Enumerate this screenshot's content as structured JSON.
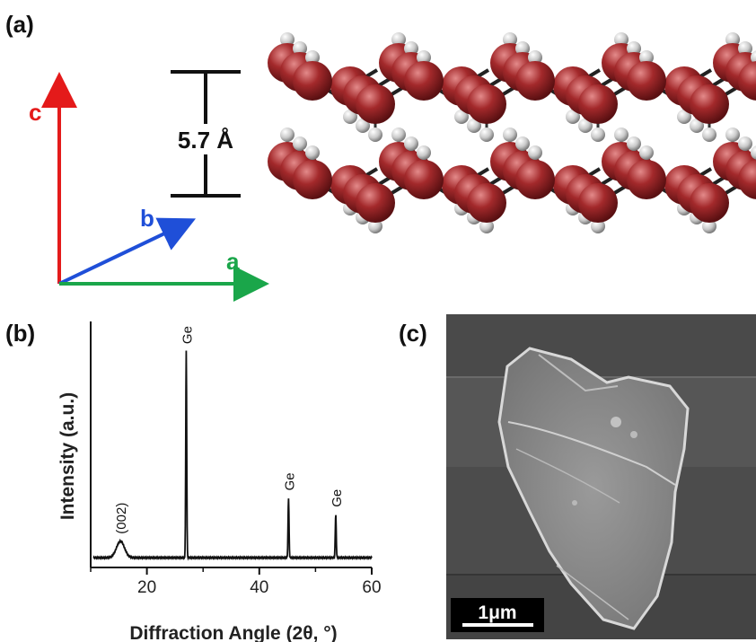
{
  "panels": {
    "a": "(a)",
    "b": "(b)",
    "c": "(c)"
  },
  "crystal": {
    "axes": {
      "a": "a",
      "b": "b",
      "c": "c"
    },
    "axis_colors": {
      "a": "#1aa64a",
      "b": "#1f4fd8",
      "c": "#e41a1a"
    },
    "spacing_label": "5.7 Å",
    "atom_color": "#a3292b",
    "hydrogen_color": "#cfcfcf"
  },
  "chart_data": {
    "type": "line",
    "xlabel": "Diffraction Angle (2θ, °)",
    "ylabel": "Intensity (a.u.)",
    "xlim": [
      10,
      60
    ],
    "ylim": [
      0,
      100
    ],
    "xticks": [
      20,
      40,
      60
    ],
    "peaks": [
      {
        "x": 15.3,
        "height": 8,
        "width": 1.0,
        "label": "(002)"
      },
      {
        "x": 27.0,
        "height": 100,
        "width": 0.12,
        "label": "Ge"
      },
      {
        "x": 45.2,
        "height": 29,
        "width": 0.12,
        "label": "Ge"
      },
      {
        "x": 53.6,
        "height": 21,
        "width": 0.12,
        "label": "Ge"
      }
    ],
    "baseline": 3
  },
  "sem": {
    "scale_bar": "1μm"
  }
}
